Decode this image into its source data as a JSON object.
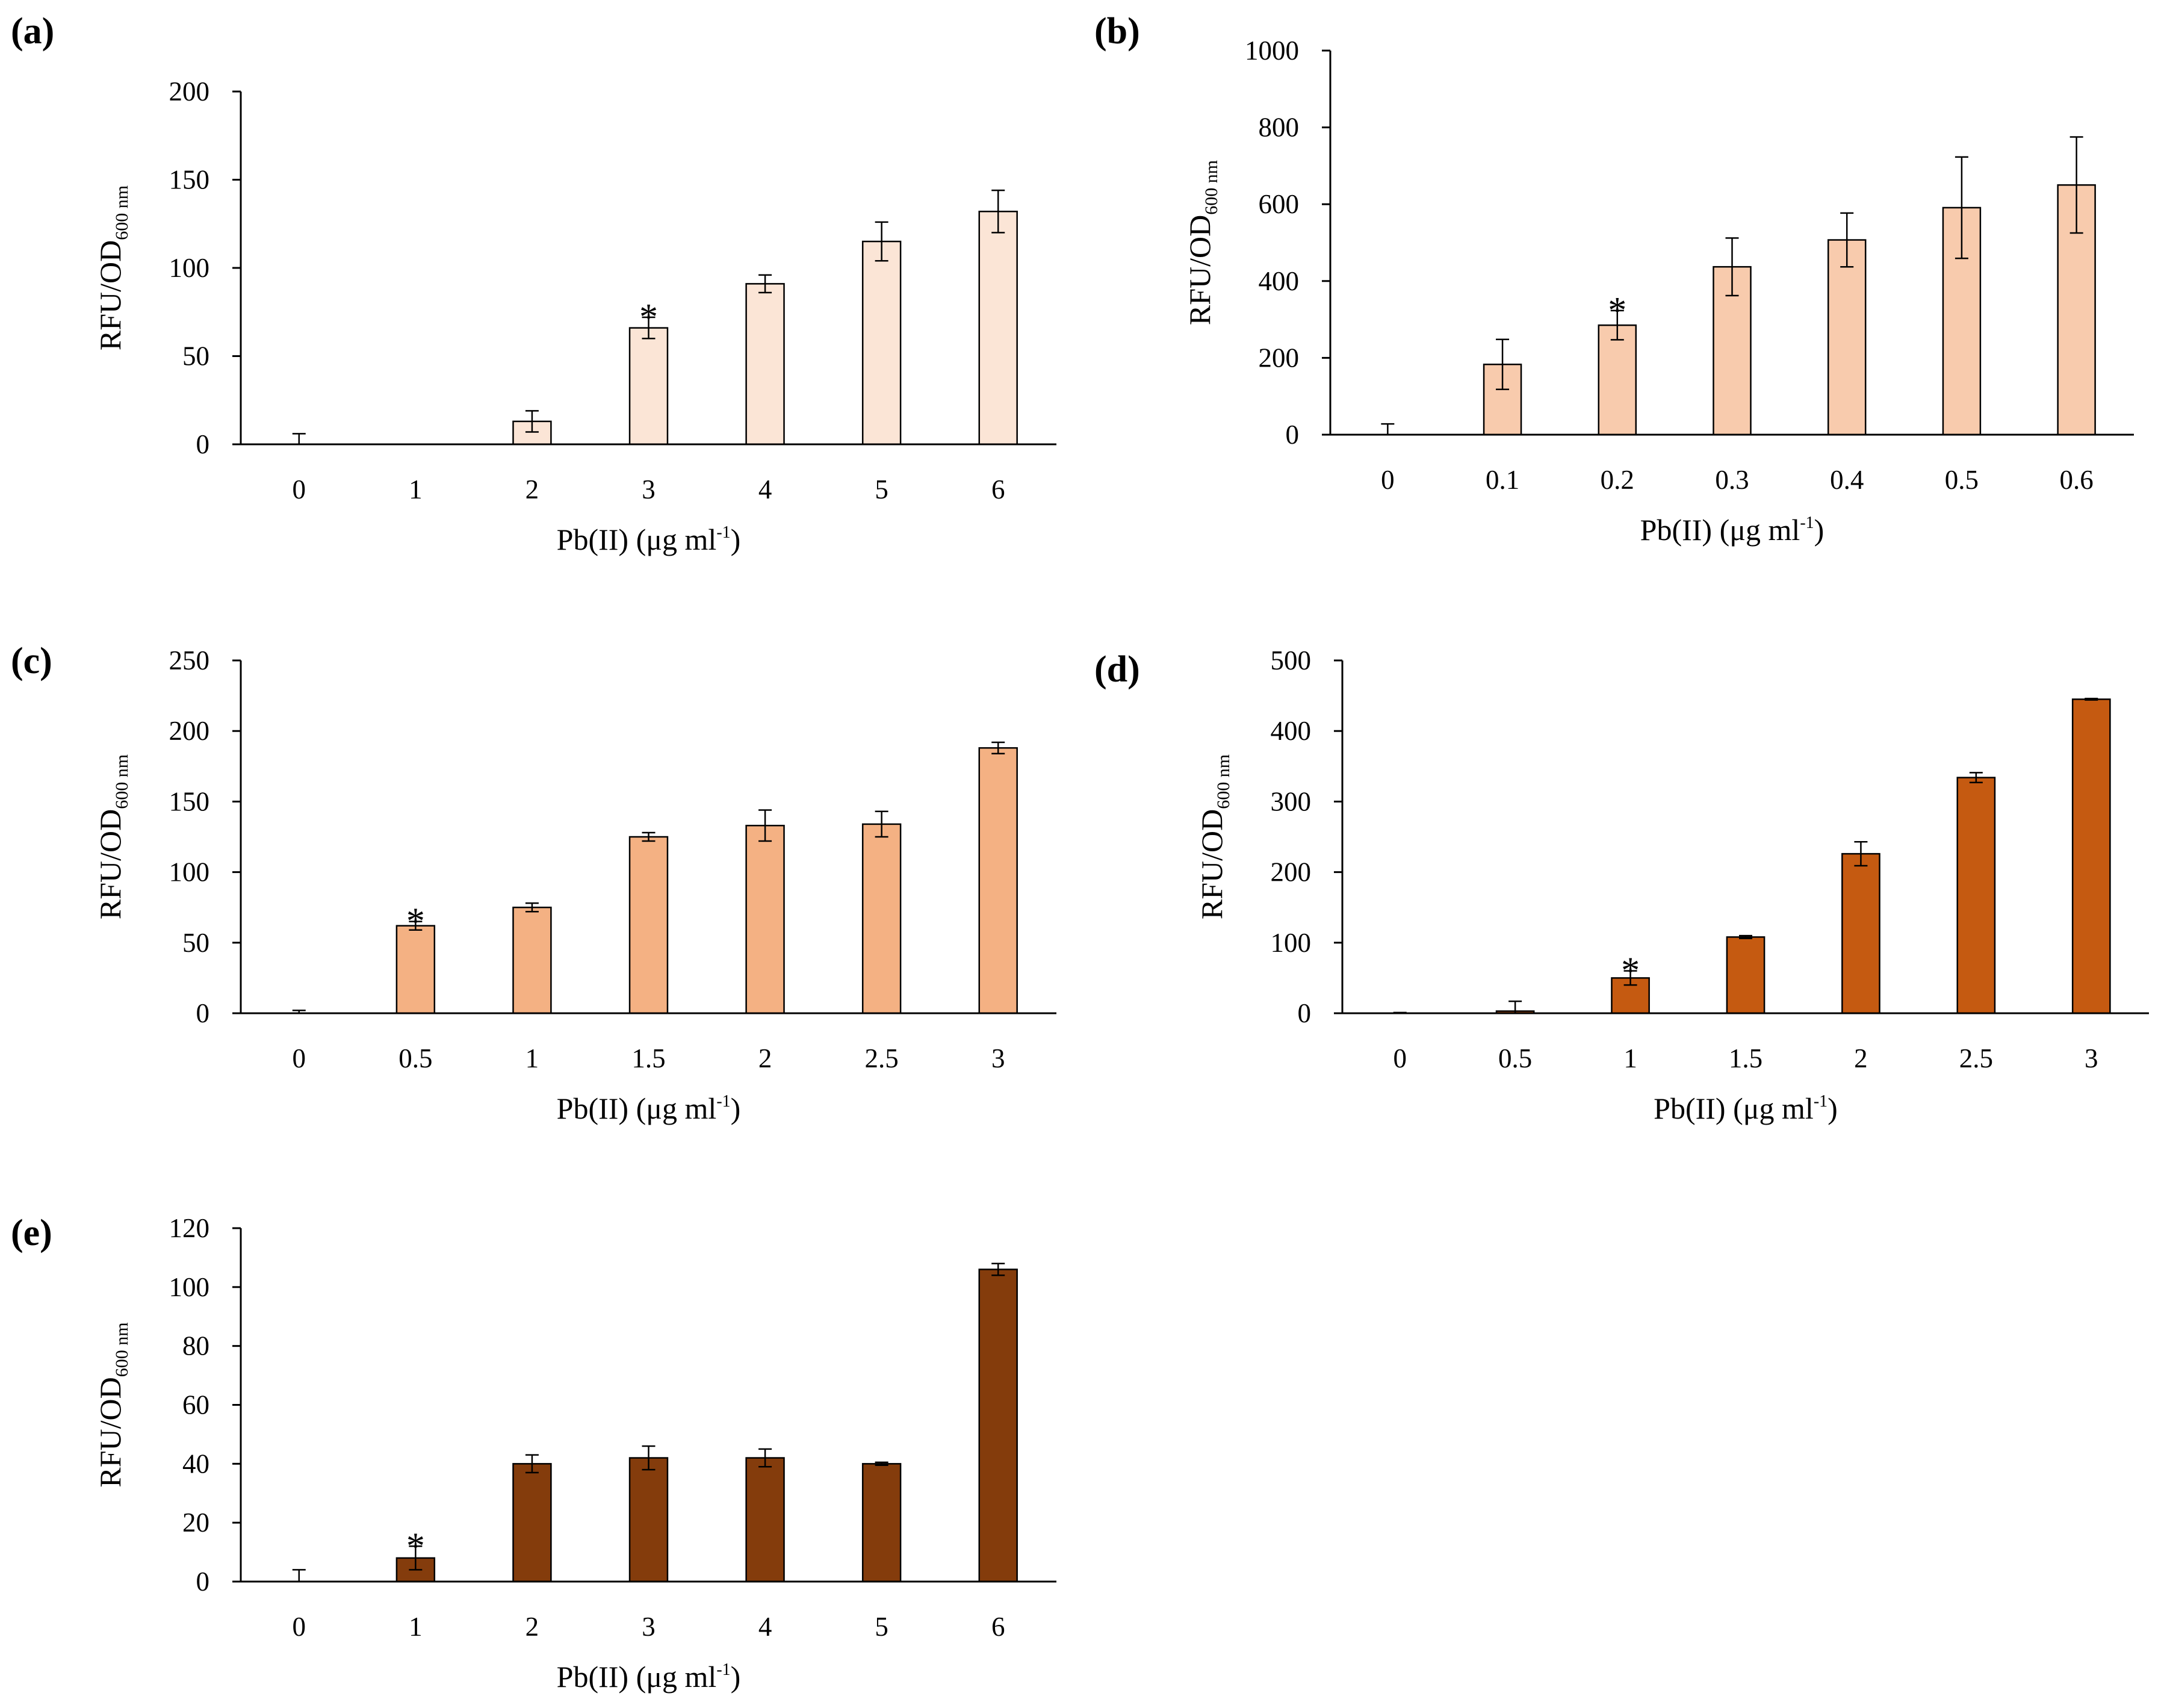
{
  "figure": {
    "y_axis_title": "RFU/OD",
    "y_axis_subscript": "600 nm",
    "x_axis_title_prefix": "Pb(II) (μg ml",
    "x_axis_title_superscript": "-1",
    "x_axis_title_suffix": ")",
    "significance_marker": "*"
  },
  "chart_data": [
    {
      "type": "bar",
      "panel": "(a)",
      "categories": [
        "0",
        "1",
        "2",
        "3",
        "4",
        "5",
        "6"
      ],
      "values": [
        0,
        0,
        13,
        66,
        91,
        115,
        132
      ],
      "errors": [
        6,
        0,
        6,
        6,
        5,
        11,
        12
      ],
      "significant_index": 3,
      "yticks": [
        "0",
        "50",
        "100",
        "150",
        "200"
      ],
      "ylim": [
        0,
        200
      ],
      "color": "#FBE5D6",
      "xlabel": "Pb(II) (μg ml-1)",
      "ylabel": "RFU/OD600 nm"
    },
    {
      "type": "bar",
      "panel": "(b)",
      "categories": [
        "0",
        "0.1",
        "0.2",
        "0.3",
        "0.4",
        "0.5",
        "0.6"
      ],
      "values": [
        0,
        183,
        285,
        437,
        507,
        591,
        650
      ],
      "errors": [
        28,
        65,
        38,
        75,
        70,
        132,
        125
      ],
      "significant_index": 2,
      "yticks": [
        "0",
        "200",
        "400",
        "600",
        "800",
        "1000"
      ],
      "ylim": [
        0,
        1000
      ],
      "color": "#F8CBAD",
      "xlabel": "Pb(II) (μg ml-1)",
      "ylabel": "RFU/OD600 nm"
    },
    {
      "type": "bar",
      "panel": "(c)",
      "categories": [
        "0",
        "0.5",
        "1",
        "1.5",
        "2",
        "2.5",
        "3"
      ],
      "values": [
        0,
        62,
        75,
        125,
        133,
        134,
        188
      ],
      "errors": [
        2,
        3,
        3,
        3,
        11,
        9,
        4
      ],
      "significant_index": 1,
      "yticks": [
        "0",
        "50",
        "100",
        "150",
        "200",
        "250"
      ],
      "ylim": [
        0,
        250
      ],
      "color": "#F4B183",
      "xlabel": "Pb(II) (μg ml-1)",
      "ylabel": "RFU/OD600 nm"
    },
    {
      "type": "bar",
      "panel": "(d)",
      "categories": [
        "0",
        "0.5",
        "1",
        "1.5",
        "2",
        "2.5",
        "3"
      ],
      "values": [
        0,
        3,
        50,
        108,
        226,
        334,
        445
      ],
      "errors": [
        1,
        14,
        10,
        2,
        17,
        7,
        1
      ],
      "significant_index": 2,
      "yticks": [
        "0",
        "100",
        "200",
        "300",
        "400",
        "500"
      ],
      "ylim": [
        0,
        500
      ],
      "color": "#C55A11",
      "xlabel": "Pb(II) (μg ml-1)",
      "ylabel": "RFU/OD600 nm"
    },
    {
      "type": "bar",
      "panel": "(e)",
      "categories": [
        "0",
        "1",
        "2",
        "3",
        "4",
        "5",
        "6"
      ],
      "values": [
        0,
        8,
        40,
        42,
        42,
        40,
        106
      ],
      "errors": [
        4,
        4,
        3,
        4,
        3,
        0.5,
        2
      ],
      "significant_index": 1,
      "yticks": [
        "0",
        "20",
        "40",
        "60",
        "80",
        "100",
        "120"
      ],
      "ylim": [
        0,
        120
      ],
      "color": "#843C0C",
      "xlabel": "Pb(II) (μg ml-1)",
      "ylabel": "RFU/OD600 nm"
    }
  ]
}
